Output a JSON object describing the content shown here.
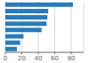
{
  "chart_data": {
    "type": "bar",
    "orientation": "horizontal",
    "categories": [
      null,
      null,
      null,
      null,
      null,
      null,
      null,
      null
    ],
    "values": [
      82,
      52,
      51,
      50,
      44,
      22,
      18,
      14
    ],
    "color": "#2b7bba",
    "xlim": [
      0,
      95
    ],
    "xticks": [
      0,
      20,
      40,
      60,
      80
    ],
    "grid": true,
    "tick_labels": "x"
  }
}
